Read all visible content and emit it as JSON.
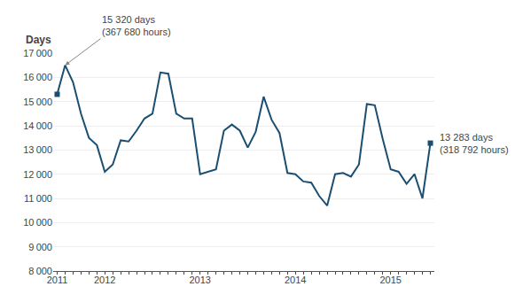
{
  "chart_data": {
    "type": "line",
    "ylabel": "Days",
    "categories": [
      "2011",
      null,
      null,
      null,
      null,
      null,
      "2012",
      null,
      null,
      null,
      null,
      null,
      null,
      null,
      null,
      null,
      null,
      null,
      "2013",
      null,
      null,
      null,
      null,
      null,
      null,
      null,
      null,
      null,
      null,
      null,
      "2014",
      null,
      null,
      null,
      null,
      null,
      null,
      null,
      null,
      null,
      null,
      null,
      "2015",
      null,
      null,
      null,
      null,
      null
    ],
    "values": [
      15300,
      16500,
      15800,
      14500,
      13500,
      13200,
      12100,
      12400,
      13400,
      13350,
      13800,
      14300,
      14500,
      16200,
      16150,
      14500,
      14300,
      14300,
      12000,
      12100,
      12200,
      13800,
      14050,
      13800,
      13100,
      13750,
      15200,
      14250,
      13700,
      12050,
      12000,
      11700,
      11650,
      11100,
      10700,
      12000,
      12050,
      11900,
      12400,
      14900,
      14850,
      13450,
      12200,
      12100,
      11600,
      12000,
      11000,
      13283
    ],
    "color": "#1B4F72",
    "ylim": [
      8000,
      17000
    ],
    "yticks": [
      {
        "value": 8000,
        "label": "8 000"
      },
      {
        "value": 9000,
        "label": "9 000"
      },
      {
        "value": 10000,
        "label": "10 000"
      },
      {
        "value": 11000,
        "label": "11 000"
      },
      {
        "value": 12000,
        "label": "12 000"
      },
      {
        "value": 13000,
        "label": "13 000"
      },
      {
        "value": 14000,
        "label": "14 000"
      },
      {
        "value": 15000,
        "label": "15 000"
      },
      {
        "value": 16000,
        "label": "16 000"
      },
      {
        "value": 17000,
        "label": "17 000"
      }
    ],
    "grid": "y",
    "annotations": [
      "15 320 days\n(367 680 hours)",
      "13 283 days\n(318 792 hours)"
    ]
  }
}
